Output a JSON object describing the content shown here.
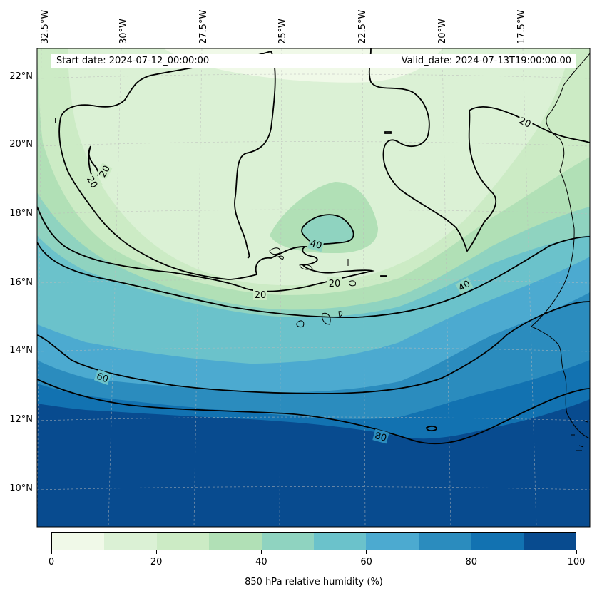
{
  "header": {
    "start_date": "Start date: 2024-07-12_00:00:00",
    "valid_date": "Valid_date: 2024-07-13T19:00:00.00"
  },
  "lon_labels": [
    "32.5°W",
    "30°W",
    "27.5°W",
    "25°W",
    "22.5°W",
    "20°W",
    "17.5°W"
  ],
  "lat_labels": [
    "22°N",
    "20°N",
    "18°N",
    "16°N",
    "14°N",
    "12°N",
    "10°N"
  ],
  "contour_levels": [
    "20",
    "20",
    "20",
    "20",
    "20",
    "40",
    "40",
    "60",
    "80"
  ],
  "colorbar": {
    "title": "850 hPa relative humidity (%)",
    "ticks": [
      "0",
      "20",
      "40",
      "60",
      "80",
      "100"
    ],
    "colors": [
      "#f0f9e8",
      "#dbf1d5",
      "#ccebc5",
      "#b1e0b6",
      "#8fd3c0",
      "#6bc2cb",
      "#4caad0",
      "#2b8cbe",
      "#1272b1",
      "#084b8f"
    ]
  }
}
